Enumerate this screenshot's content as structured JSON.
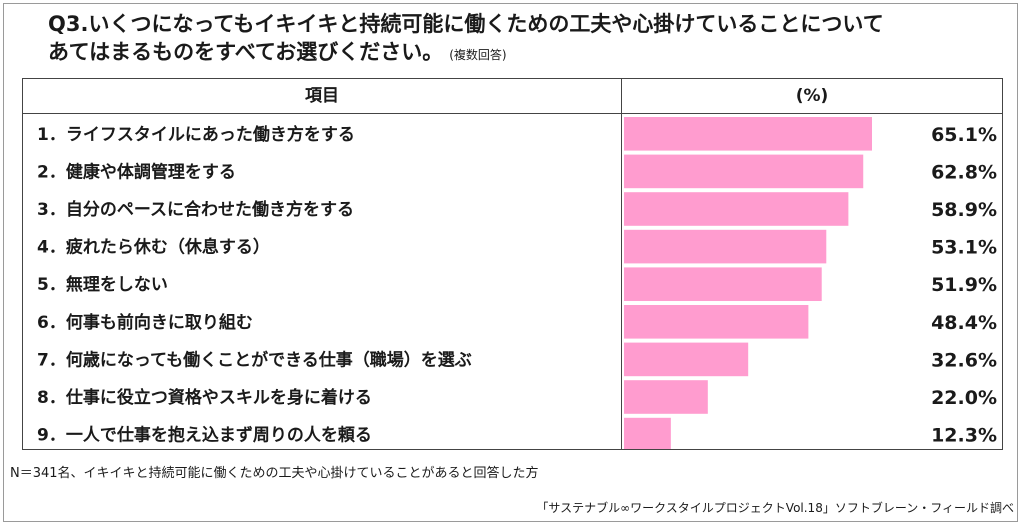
{
  "title": {
    "line1": "Q3.いくつになってもイキイキと持続可能に働くための工夫や心掛けていることについて",
    "line2": "あてはまるものをすべてお選びください。",
    "note": "(複数回答)"
  },
  "table": {
    "col_item": "項目",
    "col_pct": "(%)"
  },
  "chart_data": {
    "type": "bar",
    "orientation": "horizontal",
    "categories": [
      "1．ライフスタイルにあった働き方をする",
      "2．健康や体調管理をする",
      "3．自分のペースに合わせた働き方をする",
      "4．疲れたら休む（休息する）",
      "5．無理をしない",
      "6．何事も前向きに取り組む",
      "7．何歳になっても働くことができる仕事（職場）を選ぶ",
      "8．仕事に役立つ資格やスキルを身に着ける",
      "9．一人で仕事を抱え込まず周りの人を頼る"
    ],
    "values": [
      65.1,
      62.8,
      58.9,
      53.1,
      51.9,
      48.4,
      32.6,
      22.0,
      12.3
    ],
    "value_labels": [
      "65.1%",
      "62.8%",
      "58.9%",
      "53.1%",
      "51.9%",
      "48.4%",
      "32.6%",
      "22.0%",
      "12.3%"
    ],
    "xlim": [
      0,
      65.1
    ],
    "bar_color": "#ff9ccf"
  },
  "footnote": "N＝341名、イキイキと持続可能に働くための工夫や心掛けていることがあると回答した方",
  "credit": "「サステナブル∞ワークスタイルプロジェクトVol.18」ソフトブレーン・フィールド調べ"
}
